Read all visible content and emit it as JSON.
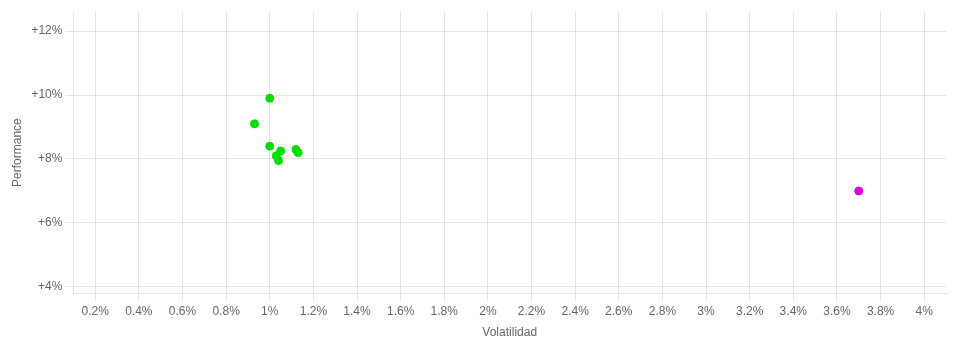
{
  "chart_data": {
    "type": "scatter",
    "xlabel": "Volatilidad",
    "ylabel": "Performance",
    "xlim": [
      0.001,
      0.041
    ],
    "ylim": [
      0.038,
      0.126
    ],
    "xticks": [
      {
        "value": 0.002,
        "label": "0.2%"
      },
      {
        "value": 0.004,
        "label": "0.4%"
      },
      {
        "value": 0.006,
        "label": "0.6%"
      },
      {
        "value": 0.008,
        "label": "0.8%"
      },
      {
        "value": 0.01,
        "label": "1%"
      },
      {
        "value": 0.012,
        "label": "1.2%"
      },
      {
        "value": 0.014,
        "label": "1.4%"
      },
      {
        "value": 0.016,
        "label": "1.6%"
      },
      {
        "value": 0.018,
        "label": "1.8%"
      },
      {
        "value": 0.02,
        "label": "2%"
      },
      {
        "value": 0.022,
        "label": "2.2%"
      },
      {
        "value": 0.024,
        "label": "2.4%"
      },
      {
        "value": 0.026,
        "label": "2.6%"
      },
      {
        "value": 0.028,
        "label": "2.8%"
      },
      {
        "value": 0.03,
        "label": "3%"
      },
      {
        "value": 0.032,
        "label": "3.2%"
      },
      {
        "value": 0.034,
        "label": "3.4%"
      },
      {
        "value": 0.036,
        "label": "3.6%"
      },
      {
        "value": 0.038,
        "label": "3.8%"
      },
      {
        "value": 0.04,
        "label": "4%"
      }
    ],
    "yticks": [
      {
        "value": 0.04,
        "label": "+4%"
      },
      {
        "value": 0.06,
        "label": "+6%"
      },
      {
        "value": 0.08,
        "label": "+8%"
      },
      {
        "value": 0.1,
        "label": "+10%"
      },
      {
        "value": 0.12,
        "label": "+12%"
      }
    ],
    "grid": true,
    "series": [
      {
        "color": "#00dd00",
        "x": [
          0.01,
          0.0093,
          0.01,
          0.0105,
          0.0112,
          0.0103,
          0.0113,
          0.0104
        ],
        "values": [
          0.099,
          0.091,
          0.084,
          0.0825,
          0.083,
          0.081,
          0.082,
          0.0795
        ]
      },
      {
        "color": "#dd00dd",
        "x": [
          0.037
        ],
        "values": [
          0.07
        ]
      }
    ]
  }
}
